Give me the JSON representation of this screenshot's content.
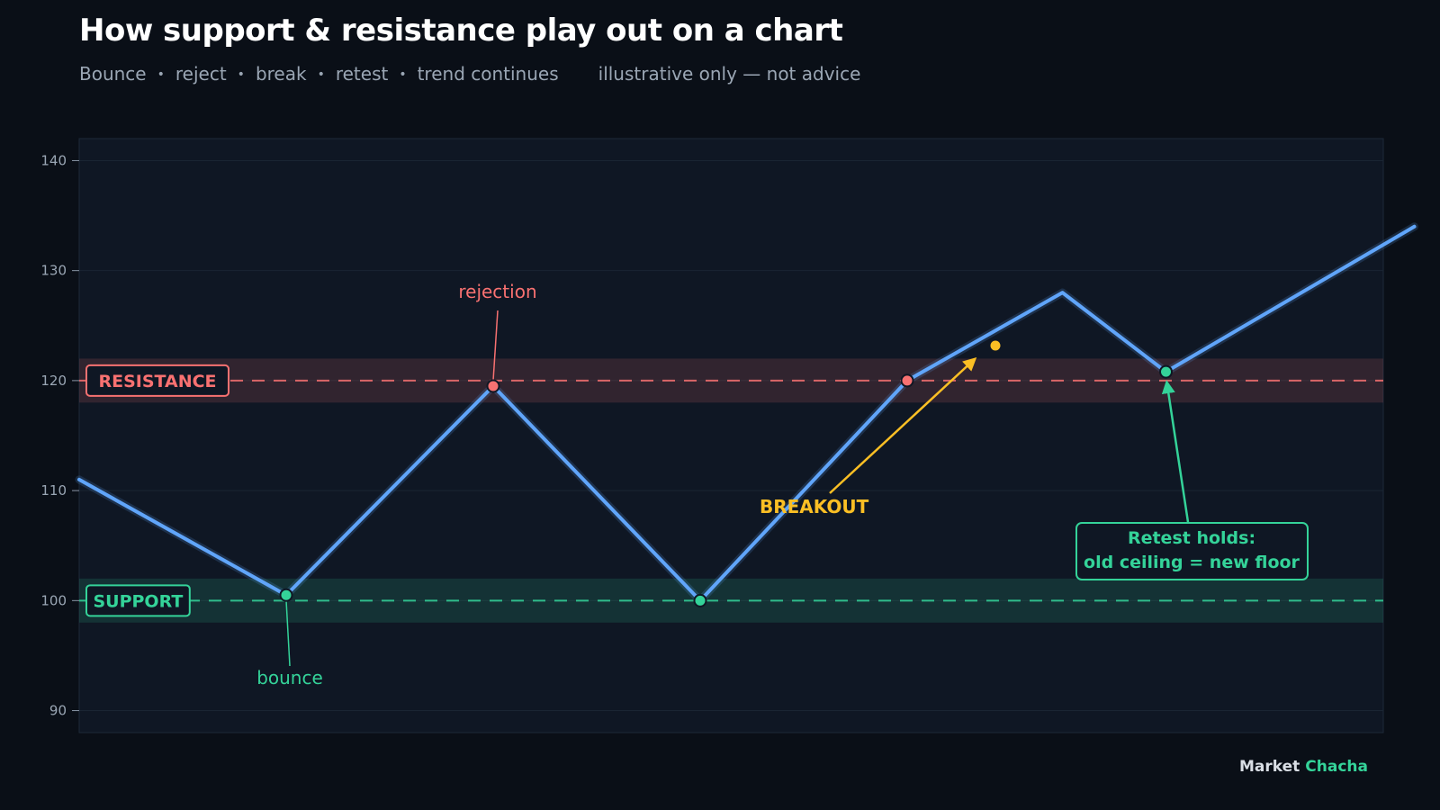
{
  "header": {
    "title": "How support & resistance play out on a chart",
    "steps": [
      "Bounce",
      "reject",
      "break",
      "retest",
      "trend continues"
    ],
    "disclaimer": "illustrative only — not advice"
  },
  "brand": {
    "part1": "Market",
    "part2": "Chacha"
  },
  "colors": {
    "background": "#0a0f17",
    "plot_bg": "#0f1724",
    "price_line": "#60a5fa",
    "resistance": "#f87171",
    "support": "#34d399",
    "breakout": "#fbbf24"
  },
  "chart_data": {
    "type": "line",
    "title": "How support & resistance play out on a chart",
    "subtitle": "Bounce • reject • break • retest • trend continues — illustrative only — not advice",
    "xlabel": "",
    "ylabel": "",
    "ylim": [
      88,
      142
    ],
    "yticks": [
      90,
      100,
      110,
      120,
      130,
      140
    ],
    "grid": true,
    "series": [
      {
        "x": [
          0,
          1,
          2,
          3,
          4,
          5,
          6,
          7,
          8
        ],
        "values": [
          111,
          100.5,
          119.5,
          100,
          120,
          128,
          120.8,
          134,
          134
        ]
      }
    ],
    "price_path": [
      {
        "x": 0.0,
        "y": 111
      },
      {
        "x": 1.0,
        "y": 100.5
      },
      {
        "x": 2.0,
        "y": 119.5
      },
      {
        "x": 3.0,
        "y": 100
      },
      {
        "x": 4.0,
        "y": 120
      },
      {
        "x": 4.75,
        "y": 128
      },
      {
        "x": 5.25,
        "y": 120.8
      },
      {
        "x": 6.45,
        "y": 134
      }
    ],
    "levels": [
      {
        "name": "resistance",
        "label": "RESISTANCE",
        "value": 120,
        "band": [
          118,
          122
        ]
      },
      {
        "name": "support",
        "label": "SUPPORT",
        "value": 100,
        "band": [
          98,
          102
        ]
      }
    ],
    "markers": [
      {
        "name": "bounce-point",
        "x": 1.0,
        "y": 100.5,
        "kind": "support"
      },
      {
        "name": "rejection-point",
        "x": 2.0,
        "y": 119.5,
        "kind": "resistance"
      },
      {
        "name": "second-bounce-point",
        "x": 3.0,
        "y": 100,
        "kind": "support"
      },
      {
        "name": "breakout-point",
        "x": 4.0,
        "y": 120,
        "kind": "resistance"
      },
      {
        "name": "retest-point",
        "x": 5.25,
        "y": 120.8,
        "kind": "support"
      }
    ],
    "annotations": [
      {
        "name": "annotation-rejection",
        "text": "rejection",
        "kind": "resistance"
      },
      {
        "name": "annotation-bounce",
        "text": "bounce",
        "kind": "support"
      },
      {
        "name": "annotation-breakout",
        "text": "BREAKOUT",
        "kind": "breakout"
      },
      {
        "name": "annotation-retest",
        "lines": [
          "Retest holds:",
          "old ceiling = new floor"
        ],
        "kind": "support"
      }
    ]
  }
}
